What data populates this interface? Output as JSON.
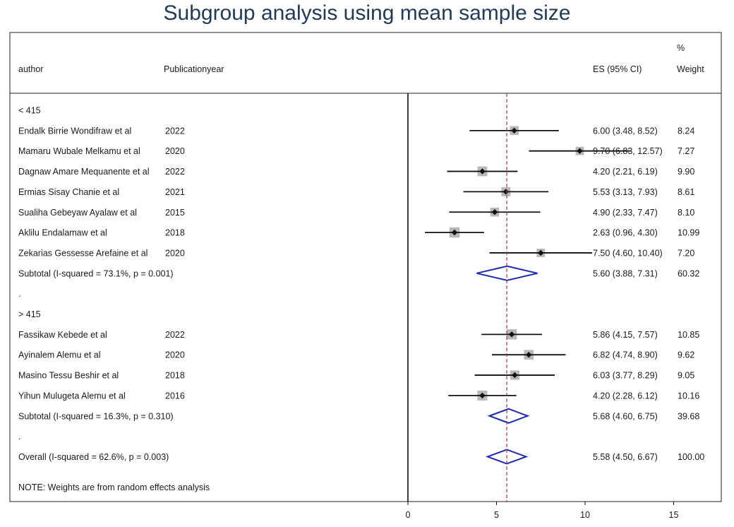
{
  "title": "Subgroup analysis using mean sample size",
  "header": {
    "author": "author",
    "year": "Publicationyear",
    "es": "ES (95% CI)",
    "weight_top": "%",
    "weight": "Weight"
  },
  "colors": {
    "title": "#1f3a5a",
    "diamond": "#1c2bb5",
    "ref_line": "#a23a3a",
    "box": "#b8b8b8"
  },
  "chart_data": {
    "type": "forest",
    "xlim": [
      0,
      20
    ],
    "xticks": [
      0,
      5,
      10,
      15,
      20
    ],
    "overall_line": 5.58,
    "rows": [
      {
        "kind": "group",
        "label": "< 415"
      },
      {
        "kind": "study",
        "author": "Endalk Birrie Wondifraw et al",
        "year": "2022",
        "es": 6.0,
        "lo": 3.48,
        "hi": 8.52,
        "es_text": "6.00 (3.48, 8.52)",
        "weight": "8.24"
      },
      {
        "kind": "study",
        "author": "Mamaru Wubale Melkamu et al",
        "year": "2020",
        "es": 9.7,
        "lo": 6.83,
        "hi": 12.57,
        "es_text": "9.70 (6.83, 12.57)",
        "weight": "7.27"
      },
      {
        "kind": "study",
        "author": "Dagnaw Amare Mequanente et al",
        "year": "2022",
        "es": 4.2,
        "lo": 2.21,
        "hi": 6.19,
        "es_text": "4.20 (2.21, 6.19)",
        "weight": "9.90"
      },
      {
        "kind": "study",
        "author": "Ermias Sisay Chanie et al",
        "year": "2021",
        "es": 5.53,
        "lo": 3.13,
        "hi": 7.93,
        "es_text": "5.53 (3.13, 7.93)",
        "weight": "8.61"
      },
      {
        "kind": "study",
        "author": "Sualiha Gebeyaw Ayalaw et al",
        "year": "2015",
        "es": 4.9,
        "lo": 2.33,
        "hi": 7.47,
        "es_text": "4.90 (2.33, 7.47)",
        "weight": "8.10"
      },
      {
        "kind": "study",
        "author": "Aklilu Endalamaw  et al",
        "year": "2018",
        "es": 2.63,
        "lo": 0.96,
        "hi": 4.3,
        "es_text": "2.63 (0.96, 4.30)",
        "weight": "10.99"
      },
      {
        "kind": "study",
        "author": "Zekarias Gessesse Arefaine et al",
        "year": "2020",
        "es": 7.5,
        "lo": 4.6,
        "hi": 10.4,
        "es_text": "7.50 (4.60, 10.40)",
        "weight": "7.20"
      },
      {
        "kind": "subtotal",
        "label": "Subtotal  (I-squared = 73.1%, p = 0.001)",
        "es": 5.6,
        "lo": 3.88,
        "hi": 7.31,
        "es_text": "5.60 (3.88, 7.31)",
        "weight": "60.32"
      },
      {
        "kind": "dot",
        "label": "."
      },
      {
        "kind": "group",
        "label": "> 415"
      },
      {
        "kind": "study",
        "author": "Fassikaw Kebede et al",
        "year": "2022",
        "es": 5.86,
        "lo": 4.15,
        "hi": 7.57,
        "es_text": "5.86 (4.15, 7.57)",
        "weight": "10.85"
      },
      {
        "kind": "study",
        "author": "Ayinalem Alemu et al",
        "year": "2020",
        "es": 6.82,
        "lo": 4.74,
        "hi": 8.9,
        "es_text": "6.82 (4.74, 8.90)",
        "weight": "9.62"
      },
      {
        "kind": "study",
        "author": "Masino Tessu Beshir et al",
        "year": "2018",
        "es": 6.03,
        "lo": 3.77,
        "hi": 8.29,
        "es_text": "6.03 (3.77, 8.29)",
        "weight": "9.05"
      },
      {
        "kind": "study",
        "author": "Yihun Mulugeta Alemu et al",
        "year": "2016",
        "es": 4.2,
        "lo": 2.28,
        "hi": 6.12,
        "es_text": "4.20 (2.28, 6.12)",
        "weight": "10.16"
      },
      {
        "kind": "subtotal",
        "label": "Subtotal  (I-squared = 16.3%, p = 0.310)",
        "es": 5.68,
        "lo": 4.6,
        "hi": 6.75,
        "es_text": "5.68 (4.60, 6.75)",
        "weight": "39.68"
      },
      {
        "kind": "dot",
        "label": "."
      },
      {
        "kind": "subtotal",
        "label": "Overall  (I-squared = 62.6%, p = 0.003)",
        "es": 5.58,
        "lo": 4.5,
        "hi": 6.67,
        "es_text": "5.58 (4.50, 6.67)",
        "weight": "100.00"
      }
    ],
    "note": "NOTE: Weights are from random effects analysis"
  }
}
